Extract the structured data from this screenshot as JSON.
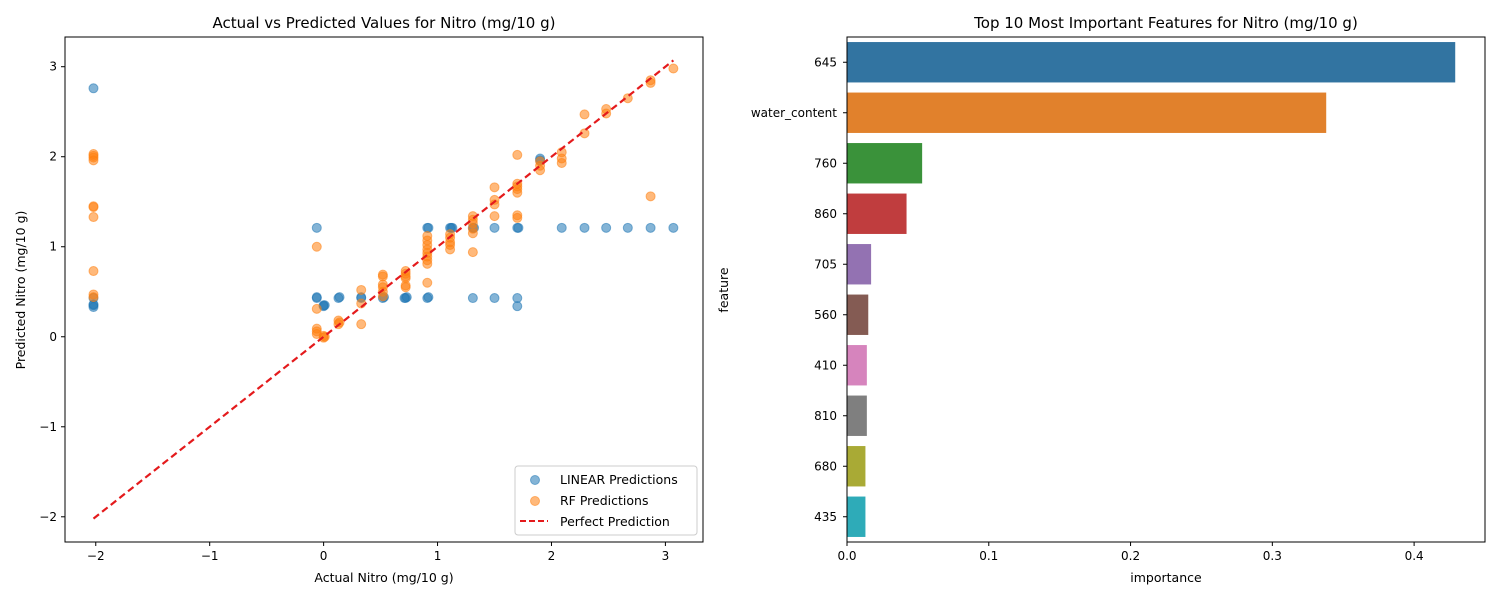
{
  "chart_data": [
    {
      "type": "scatter",
      "title": "Actual vs Predicted Values for Nitro (mg/10 g)",
      "xlabel": "Actual Nitro (mg/10 g)",
      "ylabel": "Predicted Nitro (mg/10 g)",
      "xlim": [
        -2.27,
        3.33
      ],
      "ylim": [
        -2.28,
        3.33
      ],
      "xticks": [
        -2,
        -1,
        0,
        1,
        2,
        3
      ],
      "yticks": [
        -2,
        -1,
        0,
        1,
        2,
        3
      ],
      "xtick_labels": [
        "−2",
        "−1",
        "0",
        "1",
        "2",
        "3"
      ],
      "ytick_labels": [
        "−2",
        "−1",
        "0",
        "1",
        "2",
        "3"
      ],
      "legend_position": "bottom-right",
      "series": [
        {
          "name": "LINEAR Predictions",
          "color": "#1f77b4",
          "points": [
            [
              -2.02,
              2.76
            ],
            [
              -2.02,
              0.43
            ],
            [
              -2.02,
              0.35
            ],
            [
              -2.02,
              0.33
            ],
            [
              -2.02,
              0.36
            ],
            [
              -0.06,
              1.21
            ],
            [
              -0.06,
              0.43
            ],
            [
              -0.06,
              0.44
            ],
            [
              0.0,
              0.35
            ],
            [
              0.0,
              0.34
            ],
            [
              0.01,
              0.35
            ],
            [
              0.13,
              0.43
            ],
            [
              0.14,
              0.44
            ],
            [
              0.33,
              0.43
            ],
            [
              0.33,
              0.44
            ],
            [
              0.52,
              0.43
            ],
            [
              0.53,
              0.44
            ],
            [
              0.72,
              0.43
            ],
            [
              0.73,
              0.44
            ],
            [
              0.71,
              0.43
            ],
            [
              0.91,
              1.21
            ],
            [
              0.92,
              1.21
            ],
            [
              0.91,
              0.43
            ],
            [
              0.92,
              0.44
            ],
            [
              1.11,
              1.21
            ],
            [
              1.12,
              1.21
            ],
            [
              1.13,
              1.21
            ],
            [
              1.31,
              1.21
            ],
            [
              1.32,
              1.21
            ],
            [
              1.31,
              0.43
            ],
            [
              1.5,
              1.21
            ],
            [
              1.5,
              0.43
            ],
            [
              1.7,
              1.21
            ],
            [
              1.71,
              1.21
            ],
            [
              1.7,
              0.43
            ],
            [
              1.7,
              0.34
            ],
            [
              1.9,
              1.98
            ],
            [
              1.9,
              1.96
            ],
            [
              2.09,
              1.21
            ],
            [
              2.29,
              1.21
            ],
            [
              2.48,
              1.21
            ],
            [
              2.67,
              1.21
            ],
            [
              2.87,
              1.21
            ],
            [
              3.07,
              1.21
            ]
          ]
        },
        {
          "name": "RF Predictions",
          "color": "#ff7f0e",
          "points": [
            [
              -2.02,
              2.03
            ],
            [
              -2.02,
              2.01
            ],
            [
              -2.02,
              1.99
            ],
            [
              -2.02,
              1.96
            ],
            [
              -2.02,
              1.45
            ],
            [
              -2.02,
              1.44
            ],
            [
              -2.02,
              1.33
            ],
            [
              -2.02,
              0.73
            ],
            [
              -2.02,
              0.47
            ],
            [
              -2.02,
              0.44
            ],
            [
              -0.06,
              1.0
            ],
            [
              -0.06,
              0.31
            ],
            [
              -0.06,
              0.09
            ],
            [
              -0.06,
              0.06
            ],
            [
              -0.06,
              0.03
            ],
            [
              0.0,
              0.01
            ],
            [
              0.01,
              0.0
            ],
            [
              0.0,
              -0.01
            ],
            [
              0.13,
              0.18
            ],
            [
              0.13,
              0.14
            ],
            [
              0.14,
              0.16
            ],
            [
              0.33,
              0.52
            ],
            [
              0.33,
              0.37
            ],
            [
              0.33,
              0.14
            ],
            [
              0.52,
              0.69
            ],
            [
              0.52,
              0.67
            ],
            [
              0.52,
              0.58
            ],
            [
              0.52,
              0.55
            ],
            [
              0.52,
              0.5
            ],
            [
              0.52,
              0.45
            ],
            [
              0.72,
              0.73
            ],
            [
              0.72,
              0.7
            ],
            [
              0.72,
              0.67
            ],
            [
              0.72,
              0.65
            ],
            [
              0.72,
              0.57
            ],
            [
              0.72,
              0.55
            ],
            [
              0.91,
              1.12
            ],
            [
              0.91,
              1.07
            ],
            [
              0.91,
              1.02
            ],
            [
              0.91,
              0.97
            ],
            [
              0.91,
              0.93
            ],
            [
              0.91,
              0.89
            ],
            [
              0.91,
              0.85
            ],
            [
              0.91,
              0.81
            ],
            [
              0.91,
              0.6
            ],
            [
              1.11,
              1.14
            ],
            [
              1.11,
              1.1
            ],
            [
              1.11,
              1.05
            ],
            [
              1.11,
              1.02
            ],
            [
              1.11,
              0.97
            ],
            [
              1.31,
              1.34
            ],
            [
              1.31,
              1.3
            ],
            [
              1.31,
              1.26
            ],
            [
              1.31,
              1.2
            ],
            [
              1.31,
              1.15
            ],
            [
              1.31,
              0.94
            ],
            [
              1.5,
              1.66
            ],
            [
              1.5,
              1.52
            ],
            [
              1.5,
              1.47
            ],
            [
              1.5,
              1.34
            ],
            [
              1.7,
              2.02
            ],
            [
              1.7,
              1.7
            ],
            [
              1.7,
              1.67
            ],
            [
              1.7,
              1.64
            ],
            [
              1.7,
              1.6
            ],
            [
              1.7,
              1.35
            ],
            [
              1.7,
              1.32
            ],
            [
              1.9,
              1.95
            ],
            [
              1.9,
              1.9
            ],
            [
              1.9,
              1.85
            ],
            [
              2.09,
              2.05
            ],
            [
              2.09,
              1.98
            ],
            [
              2.09,
              1.93
            ],
            [
              2.29,
              2.47
            ],
            [
              2.29,
              2.26
            ],
            [
              2.48,
              2.53
            ],
            [
              2.48,
              2.48
            ],
            [
              2.67,
              2.65
            ],
            [
              2.87,
              2.85
            ],
            [
              2.87,
              2.82
            ],
            [
              2.87,
              1.56
            ],
            [
              3.07,
              2.98
            ]
          ]
        },
        {
          "name": "Perfect Prediction",
          "color": "#e41a1c",
          "line": [
            [
              -2.02,
              -2.02
            ],
            [
              3.07,
              3.07
            ]
          ]
        }
      ]
    },
    {
      "type": "bar",
      "orientation": "horizontal",
      "title": "Top 10 Most Important Features for Nitro (mg/10 g)",
      "xlabel": "importance",
      "ylabel": "feature",
      "xlim": [
        0,
        0.45
      ],
      "xticks": [
        0.0,
        0.1,
        0.2,
        0.3,
        0.4
      ],
      "xtick_labels": [
        "0.0",
        "0.1",
        "0.2",
        "0.3",
        "0.4"
      ],
      "categories": [
        "645",
        "water_content",
        "760",
        "860",
        "705",
        "560",
        "410",
        "810",
        "680",
        "435"
      ],
      "values": [
        0.429,
        0.338,
        0.053,
        0.042,
        0.017,
        0.015,
        0.014,
        0.014,
        0.013,
        0.013
      ],
      "colors": [
        "#3274a1",
        "#e1812c",
        "#3a923a",
        "#c03d3e",
        "#9372b2",
        "#845b53",
        "#d684bd",
        "#7f7f7f",
        "#a9aa35",
        "#2eabb8"
      ]
    }
  ]
}
